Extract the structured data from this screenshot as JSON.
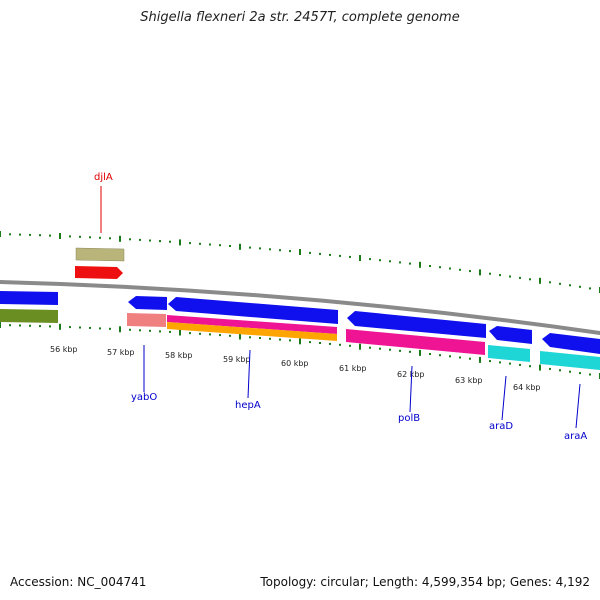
{
  "title": "Shigella flexneri 2a str. 2457T, complete genome",
  "footer": {
    "accession": "Accession: NC_004741",
    "summary": "Topology: circular; Length: 4,599,354 bp; Genes: 4,192"
  },
  "scale": {
    "ticks": [
      "56 kbp",
      "57 kbp",
      "58 kbp",
      "59 kbp",
      "60 kbp",
      "61 kbp",
      "62 kbp",
      "63 kbp",
      "64 kbp"
    ]
  },
  "gene_labels": [
    {
      "text": "djlA",
      "color": "#dd0000"
    },
    {
      "text": "yabO",
      "color": "#0000cc"
    },
    {
      "text": "hepA",
      "color": "#0000cc"
    },
    {
      "text": "polB",
      "color": "#0000cc"
    },
    {
      "text": "araD",
      "color": "#0000cc"
    },
    {
      "text": "araA",
      "color": "#0000cc"
    }
  ],
  "colors": {
    "cds": "#1010ee",
    "rna_red": "#ee1010",
    "olive": "#b8b47a",
    "green": "#6b8e23",
    "magenta": "#ee1493",
    "orange": "#ffa500",
    "salmon": "#f08080",
    "cyan": "#1ed6d6",
    "backbone": "#8a8a8a",
    "tick": "#1a7a1a"
  }
}
